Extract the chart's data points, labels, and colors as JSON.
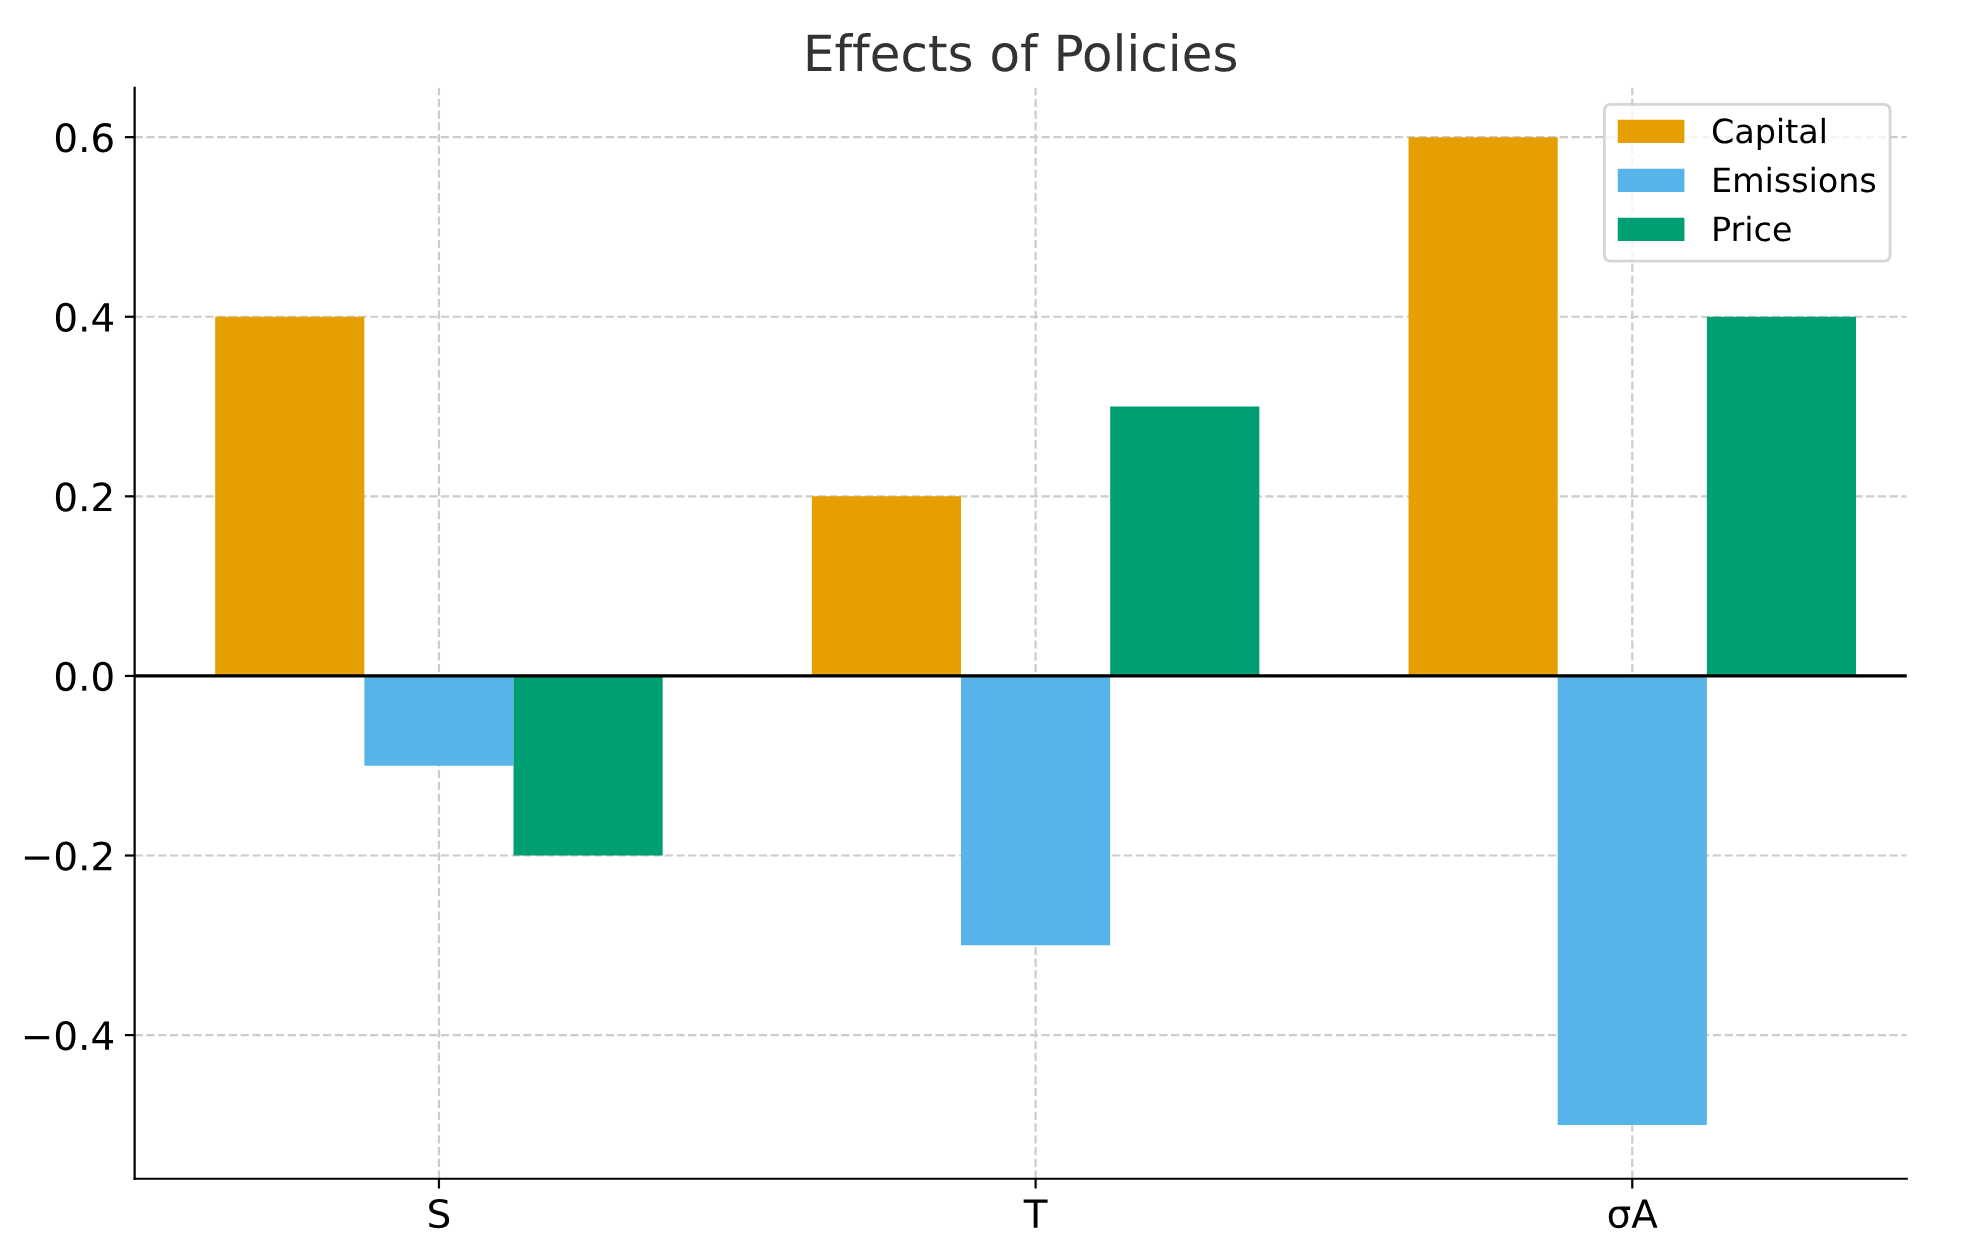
{
  "chart_data": {
    "type": "bar",
    "title": "Effects of Policies",
    "categories": [
      "S",
      "T",
      "σA"
    ],
    "series": [
      {
        "name": "Capital",
        "color": "#e69f00",
        "values": [
          0.4,
          0.2,
          0.6
        ]
      },
      {
        "name": "Emissions",
        "color": "#56b4e9",
        "values": [
          -0.1,
          -0.3,
          -0.5
        ]
      },
      {
        "name": "Price",
        "color": "#009e73",
        "values": [
          -0.2,
          0.3,
          0.4
        ]
      }
    ],
    "ylim": [
      -0.56,
      0.655
    ],
    "yticks": [
      {
        "value": -0.4,
        "label": "−0.4"
      },
      {
        "value": -0.2,
        "label": "−0.2"
      },
      {
        "value": 0.0,
        "label": "0.0"
      },
      {
        "value": 0.2,
        "label": "0.2"
      },
      {
        "value": 0.4,
        "label": "0.4"
      },
      {
        "value": 0.6,
        "label": "0.6"
      }
    ],
    "ref_lines": [
      {
        "axis": "y",
        "value": 0,
        "color": "#000000",
        "line_style": "solid"
      }
    ],
    "grid": true,
    "legend": "top right"
  }
}
